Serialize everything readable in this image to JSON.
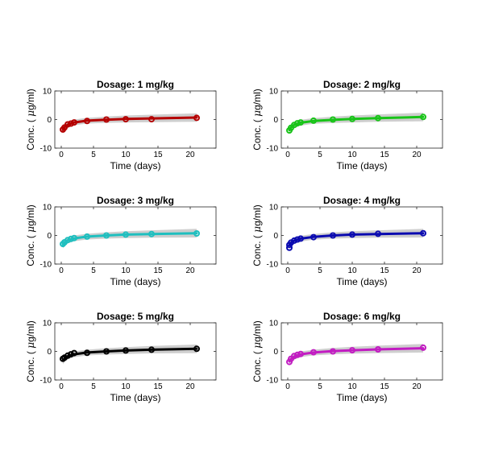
{
  "chart_data": [
    {
      "type": "line",
      "title": "Dosage: 1 mg/kg",
      "xlabel": "Time (days)",
      "ylabel_prefix": "Conc. (",
      "ylabel_mu": "μ",
      "ylabel_suffix": "g/ml)",
      "xlim": [
        -1,
        24
      ],
      "ylim": [
        -10,
        10
      ],
      "xticks": [
        0,
        5,
        10,
        15,
        20
      ],
      "yticks": [
        -10,
        0,
        10
      ],
      "color": "#b50000",
      "fit": {
        "x": [
          0.25,
          0.5,
          1,
          2,
          4,
          7,
          10,
          14,
          21
        ],
        "y": [
          -3.6,
          -2.7,
          -1.8,
          -1.0,
          -0.4,
          -0.05,
          0.2,
          0.4,
          0.7
        ]
      },
      "band": {
        "lower_offset": [
          -1.3,
          -1.2,
          -1.1,
          -1.0,
          -1.0,
          -1.1,
          -1.2,
          -1.3,
          -1.5
        ],
        "upper_offset": [
          1.3,
          1.2,
          1.1,
          1.0,
          1.0,
          1.1,
          1.2,
          1.3,
          1.5
        ]
      },
      "points": {
        "x": [
          0.25,
          0.5,
          1,
          1.5,
          2,
          4,
          7,
          10,
          14,
          21
        ],
        "y": [
          -3.5,
          -2.8,
          -1.7,
          -1.4,
          -1.0,
          -0.5,
          0.0,
          0.1,
          0.1,
          0.6
        ]
      }
    },
    {
      "type": "line",
      "title": "Dosage: 2 mg/kg",
      "xlabel": "Time (days)",
      "ylabel_prefix": "Conc. (",
      "ylabel_mu": "μ",
      "ylabel_suffix": "g/ml)",
      "xlim": [
        -1,
        24
      ],
      "ylim": [
        -10,
        10
      ],
      "xticks": [
        0,
        5,
        10,
        15,
        20
      ],
      "yticks": [
        -10,
        0,
        10
      ],
      "color": "#18c418",
      "fit": {
        "x": [
          0.25,
          0.5,
          1,
          2,
          4,
          7,
          10,
          14,
          21
        ],
        "y": [
          -3.7,
          -2.8,
          -1.9,
          -1.1,
          -0.5,
          -0.1,
          0.2,
          0.5,
          0.9
        ]
      },
      "band": {
        "lower_offset": [
          -1.3,
          -1.2,
          -1.1,
          -1.0,
          -1.0,
          -1.1,
          -1.2,
          -1.3,
          -1.5
        ],
        "upper_offset": [
          1.3,
          1.2,
          1.1,
          1.0,
          1.0,
          1.1,
          1.2,
          1.3,
          1.5
        ]
      },
      "points": {
        "x": [
          0.25,
          0.5,
          1,
          1.5,
          2,
          4,
          7,
          10,
          14,
          21
        ],
        "y": [
          -3.8,
          -2.9,
          -1.9,
          -1.3,
          -1.0,
          -0.4,
          0.0,
          0.2,
          0.5,
          0.9
        ]
      }
    },
    {
      "type": "line",
      "title": "Dosage: 3 mg/kg",
      "xlabel": "Time (days)",
      "ylabel_prefix": "Conc. (",
      "ylabel_mu": "μ",
      "ylabel_suffix": "g/ml)",
      "xlim": [
        -1,
        24
      ],
      "ylim": [
        -10,
        10
      ],
      "xticks": [
        0,
        5,
        10,
        15,
        20
      ],
      "yticks": [
        -10,
        0,
        10
      ],
      "color": "#1fbfbf",
      "fit": {
        "x": [
          0.25,
          0.5,
          1,
          2,
          4,
          7,
          10,
          14,
          21
        ],
        "y": [
          -3.2,
          -2.5,
          -1.7,
          -1.0,
          -0.4,
          0.0,
          0.3,
          0.5,
          0.8
        ]
      },
      "band": {
        "lower_offset": [
          -1.3,
          -1.2,
          -1.1,
          -1.0,
          -1.0,
          -1.1,
          -1.2,
          -1.3,
          -1.5
        ],
        "upper_offset": [
          1.3,
          1.2,
          1.1,
          1.0,
          1.0,
          1.1,
          1.2,
          1.3,
          1.5
        ]
      },
      "points": {
        "x": [
          0.25,
          0.5,
          1,
          1.5,
          2,
          4,
          7,
          10,
          14,
          21
        ],
        "y": [
          -3.0,
          -2.4,
          -1.6,
          -1.2,
          -0.9,
          -0.4,
          0.0,
          0.3,
          0.5,
          0.7
        ]
      }
    },
    {
      "type": "line",
      "title": "Dosage: 4 mg/kg",
      "xlabel": "Time (days)",
      "ylabel_prefix": "Conc. (",
      "ylabel_mu": "μ",
      "ylabel_suffix": "g/ml)",
      "xlim": [
        -1,
        24
      ],
      "ylim": [
        -10,
        10
      ],
      "xticks": [
        0,
        5,
        10,
        15,
        20
      ],
      "yticks": [
        -10,
        0,
        10
      ],
      "color": "#0a0ab0",
      "fit": {
        "x": [
          0.25,
          0.5,
          1,
          2,
          4,
          7,
          10,
          14,
          21
        ],
        "y": [
          -3.4,
          -2.6,
          -1.8,
          -1.1,
          -0.5,
          0.0,
          0.3,
          0.5,
          0.8
        ]
      },
      "band": {
        "lower_offset": [
          -1.3,
          -1.2,
          -1.1,
          -1.0,
          -1.0,
          -1.1,
          -1.2,
          -1.3,
          -1.5
        ],
        "upper_offset": [
          1.3,
          1.2,
          1.1,
          1.0,
          1.0,
          1.1,
          1.2,
          1.3,
          1.5
        ]
      },
      "points": {
        "x": [
          0.25,
          0.25,
          0.5,
          1,
          1.5,
          2,
          4,
          7,
          10,
          14,
          21
        ],
        "y": [
          -4.3,
          -3.3,
          -2.5,
          -1.8,
          -1.4,
          -1.1,
          -0.6,
          0.0,
          0.3,
          0.6,
          0.8
        ]
      }
    },
    {
      "type": "line",
      "title": "Dosage: 5 mg/kg",
      "xlabel": "Time (days)",
      "ylabel_prefix": "Conc. (",
      "ylabel_mu": "μ",
      "ylabel_suffix": "g/ml)",
      "xlim": [
        -1,
        24
      ],
      "ylim": [
        -10,
        10
      ],
      "xticks": [
        0,
        5,
        10,
        15,
        20
      ],
      "yticks": [
        -10,
        0,
        10
      ],
      "color": "#000000",
      "fit": {
        "x": [
          0.25,
          0.5,
          1,
          2,
          4,
          7,
          10,
          14,
          21
        ],
        "y": [
          -3.2,
          -2.5,
          -1.7,
          -1.0,
          -0.4,
          0.0,
          0.3,
          0.6,
          0.9
        ]
      },
      "band": {
        "lower_offset": [
          -1.3,
          -1.2,
          -1.1,
          -1.0,
          -1.0,
          -1.1,
          -1.2,
          -1.3,
          -1.5
        ],
        "upper_offset": [
          1.3,
          1.2,
          1.1,
          1.0,
          1.0,
          1.1,
          1.2,
          1.3,
          1.5
        ]
      },
      "points": {
        "x": [
          0.25,
          0.5,
          1,
          1.5,
          2,
          4,
          7,
          10,
          14,
          21
        ],
        "y": [
          -2.6,
          -2.2,
          -1.5,
          -1.0,
          -0.6,
          -0.5,
          0.0,
          0.3,
          0.6,
          0.9
        ]
      }
    },
    {
      "type": "line",
      "title": "Dosage: 6 mg/kg",
      "xlabel": "Time (days)",
      "ylabel_prefix": "Conc. (",
      "ylabel_mu": "μ",
      "ylabel_suffix": "g/ml)",
      "xlim": [
        -1,
        24
      ],
      "ylim": [
        -10,
        10
      ],
      "xticks": [
        0,
        5,
        10,
        15,
        20
      ],
      "yticks": [
        -10,
        0,
        10
      ],
      "color": "#c21cc2",
      "fit": {
        "x": [
          0.25,
          0.5,
          1,
          2,
          4,
          7,
          10,
          14,
          21
        ],
        "y": [
          -3.5,
          -2.7,
          -1.8,
          -1.0,
          -0.4,
          0.1,
          0.4,
          0.7,
          1.1
        ]
      },
      "band": {
        "lower_offset": [
          -1.3,
          -1.2,
          -1.1,
          -1.0,
          -1.0,
          -1.1,
          -1.2,
          -1.3,
          -1.5
        ],
        "upper_offset": [
          1.3,
          1.2,
          1.1,
          1.0,
          1.0,
          1.1,
          1.2,
          1.3,
          1.5
        ]
      },
      "points": {
        "x": [
          0.25,
          0.5,
          1,
          1.5,
          2,
          4,
          7,
          10,
          14,
          21
        ],
        "y": [
          -3.7,
          -2.6,
          -1.6,
          -1.2,
          -0.9,
          -0.3,
          0.0,
          0.4,
          0.7,
          1.3
        ]
      }
    }
  ]
}
